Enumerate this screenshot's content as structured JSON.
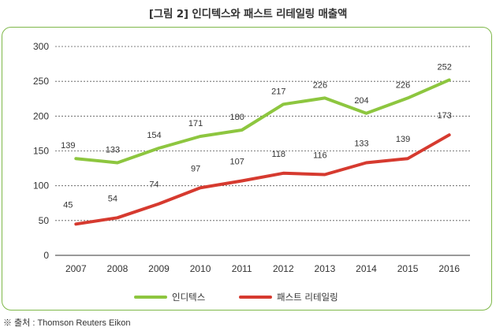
{
  "title": "[그림 2] 인디텍스와 패스트 리테일링 매출액",
  "source": "※ 출처 : Thomson Reuters Eikon",
  "chart_data": {
    "type": "line",
    "categories": [
      "2007",
      "2008",
      "2009",
      "2010",
      "2011",
      "2012",
      "2013",
      "2014",
      "2015",
      "2016"
    ],
    "series": [
      {
        "name": "인디텍스",
        "color": "#8dc63f",
        "values": [
          139,
          133,
          154,
          171,
          180,
          217,
          226,
          204,
          226,
          252
        ]
      },
      {
        "name": "패스트 리테일링",
        "color": "#d63a2f",
        "values": [
          45,
          54,
          74,
          97,
          107,
          118,
          116,
          133,
          139,
          173
        ]
      }
    ],
    "ylim": [
      0,
      300
    ],
    "yticks": [
      0,
      50,
      100,
      150,
      200,
      250,
      300
    ],
    "grid": true,
    "legend": "bottom-center"
  }
}
